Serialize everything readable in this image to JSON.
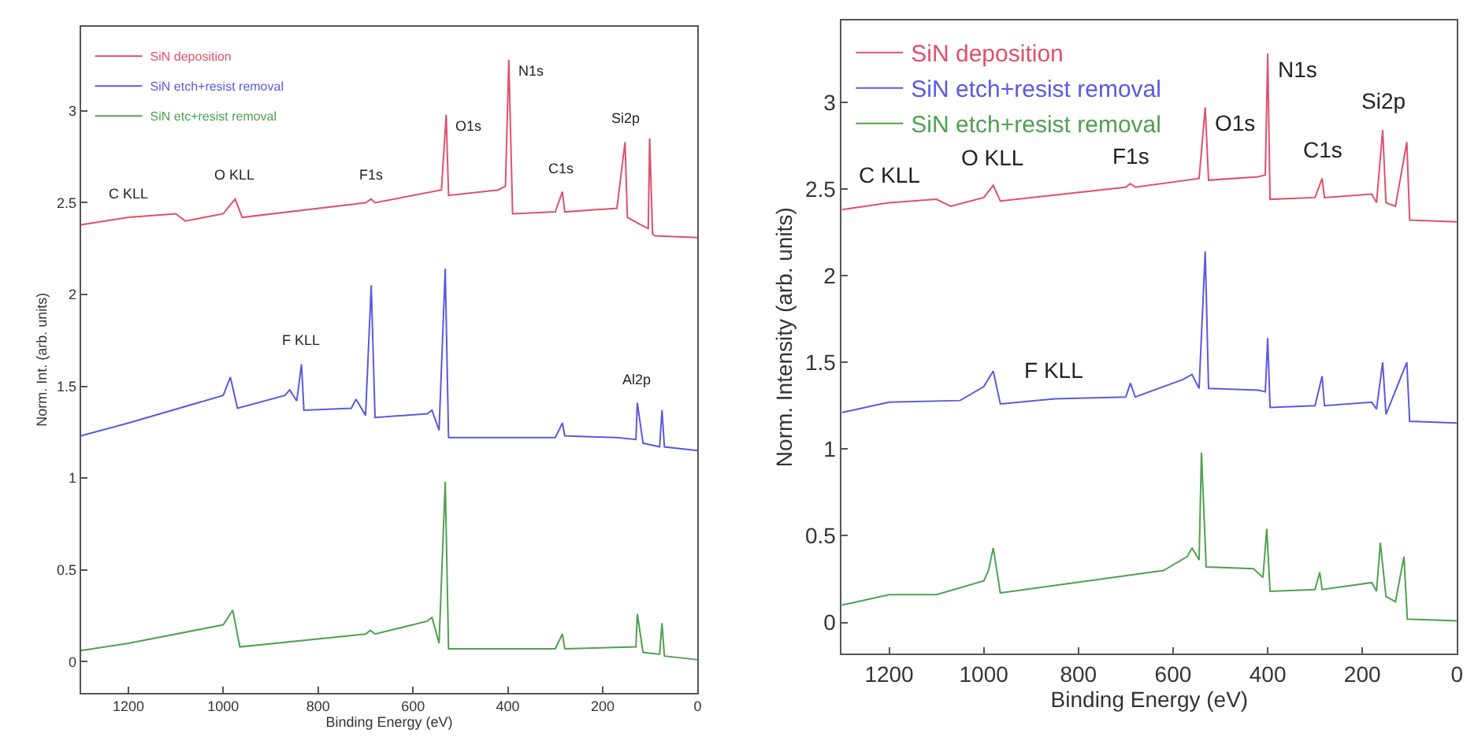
{
  "chart_data": [
    {
      "type": "line",
      "xlabel": "Binding Energy (eV)",
      "ylabel": "Norm. Int. (arb. units)",
      "xlim": [
        1300,
        0
      ],
      "ylim": [
        -0.17,
        3.46
      ],
      "xticks": [
        1200,
        1000,
        800,
        600,
        400,
        200,
        0
      ],
      "yticks": [
        0,
        0.5,
        1,
        1.5,
        2,
        2.5,
        3
      ],
      "legend": "top left",
      "series": [
        {
          "name": "SiN deposition",
          "color": "#e0506a",
          "x": [
            1300,
            1200,
            1100,
            1080,
            1000,
            975,
            960,
            700,
            688,
            680,
            540,
            530,
            525,
            420,
            405,
            398,
            390,
            300,
            285,
            280,
            170,
            153,
            148,
            120,
            104,
            101,
            95,
            90,
            0
          ],
          "values": [
            2.38,
            2.42,
            2.44,
            2.4,
            2.44,
            2.52,
            2.42,
            2.5,
            2.52,
            2.5,
            2.57,
            2.98,
            2.54,
            2.57,
            2.59,
            3.28,
            2.44,
            2.45,
            2.56,
            2.45,
            2.47,
            2.83,
            2.42,
            2.38,
            2.36,
            2.85,
            2.33,
            2.32,
            2.31
          ]
        },
        {
          "name": "SiN etch+resist removal",
          "color": "#5a5ae0",
          "x": [
            1300,
            1200,
            1000,
            985,
            970,
            870,
            860,
            845,
            835,
            830,
            730,
            720,
            700,
            688,
            680,
            570,
            560,
            545,
            532,
            525,
            300,
            285,
            280,
            170,
            130,
            127,
            115,
            80,
            75,
            70,
            0
          ],
          "values": [
            1.23,
            1.3,
            1.45,
            1.55,
            1.38,
            1.45,
            1.48,
            1.42,
            1.62,
            1.37,
            1.38,
            1.43,
            1.34,
            2.05,
            1.33,
            1.35,
            1.37,
            1.26,
            2.14,
            1.22,
            1.22,
            1.3,
            1.23,
            1.22,
            1.21,
            1.41,
            1.19,
            1.17,
            1.37,
            1.17,
            1.15
          ]
        },
        {
          "name": "SiN etc+resist removal",
          "color": "#50a050",
          "x": [
            1300,
            1200,
            1000,
            980,
            965,
            700,
            690,
            680,
            570,
            560,
            545,
            532,
            525,
            300,
            285,
            280,
            130,
            127,
            115,
            80,
            75,
            70,
            0
          ],
          "values": [
            0.06,
            0.1,
            0.2,
            0.28,
            0.08,
            0.15,
            0.17,
            0.15,
            0.22,
            0.24,
            0.1,
            0.98,
            0.07,
            0.07,
            0.15,
            0.07,
            0.08,
            0.26,
            0.05,
            0.04,
            0.21,
            0.03,
            0.01
          ]
        }
      ],
      "annotations": [
        {
          "text": "C KLL",
          "x": 1200,
          "y": 2.42
        },
        {
          "text": "O KLL",
          "x": 975,
          "y": 2.52
        },
        {
          "text": "F1s",
          "x": 688,
          "y": 2.52
        },
        {
          "text": "O1s",
          "x": 530,
          "y": 2.98
        },
        {
          "text": "N1s",
          "x": 398,
          "y": 3.28
        },
        {
          "text": "C1s",
          "x": 285,
          "y": 2.56
        },
        {
          "text": "Si2p",
          "x": 153,
          "y": 2.83
        },
        {
          "text": "F KLL",
          "x": 835,
          "y": 1.62
        },
        {
          "text": "Al2p",
          "x": 127,
          "y": 1.41
        }
      ]
    },
    {
      "type": "line",
      "xlabel": "Binding Energy (eV)",
      "ylabel": "Norm. Intensity (arb. units)",
      "xlim": [
        1300,
        0
      ],
      "ylim": [
        -0.18,
        3.47
      ],
      "xticks": [
        1200,
        1000,
        800,
        600,
        400,
        200,
        0
      ],
      "yticks": [
        0,
        0.5,
        1,
        1.5,
        2,
        2.5,
        3
      ],
      "legend": "top left",
      "series": [
        {
          "name": "SiN deposition",
          "color": "#e0506a",
          "x": [
            1300,
            1200,
            1100,
            1070,
            1000,
            980,
            965,
            700,
            690,
            680,
            545,
            532,
            525,
            420,
            405,
            400,
            395,
            300,
            285,
            280,
            180,
            170,
            157,
            150,
            130,
            106,
            100,
            0
          ],
          "values": [
            2.38,
            2.42,
            2.44,
            2.4,
            2.45,
            2.52,
            2.43,
            2.51,
            2.53,
            2.51,
            2.56,
            2.97,
            2.55,
            2.57,
            2.58,
            3.28,
            2.44,
            2.45,
            2.56,
            2.45,
            2.47,
            2.42,
            2.84,
            2.42,
            2.4,
            2.77,
            2.32,
            2.31
          ]
        },
        {
          "name": "SiN etch+resist removal",
          "color": "#5a5ae0",
          "x": [
            1300,
            1200,
            1050,
            1000,
            980,
            965,
            850,
            700,
            690,
            680,
            580,
            560,
            545,
            532,
            525,
            420,
            405,
            400,
            395,
            300,
            285,
            280,
            180,
            170,
            157,
            150,
            106,
            100,
            0
          ],
          "values": [
            1.21,
            1.27,
            1.28,
            1.36,
            1.45,
            1.26,
            1.29,
            1.3,
            1.38,
            1.3,
            1.4,
            1.43,
            1.35,
            2.14,
            1.35,
            1.34,
            1.33,
            1.64,
            1.24,
            1.25,
            1.42,
            1.25,
            1.27,
            1.23,
            1.5,
            1.2,
            1.5,
            1.16,
            1.15
          ]
        },
        {
          "name": "SiN etch+resist removal",
          "color": "#50a050",
          "x": [
            1300,
            1200,
            1100,
            1000,
            990,
            980,
            965,
            620,
            570,
            560,
            545,
            540,
            530,
            430,
            410,
            402,
            395,
            300,
            290,
            285,
            180,
            170,
            162,
            150,
            130,
            112,
            105,
            0
          ],
          "values": [
            0.1,
            0.16,
            0.16,
            0.24,
            0.3,
            0.43,
            0.17,
            0.3,
            0.38,
            0.43,
            0.36,
            0.98,
            0.32,
            0.31,
            0.26,
            0.54,
            0.18,
            0.19,
            0.29,
            0.19,
            0.23,
            0.18,
            0.46,
            0.15,
            0.12,
            0.38,
            0.02,
            0.01
          ]
        }
      ],
      "annotations": [
        {
          "text": "C KLL",
          "x": 1200,
          "y": 2.42
        },
        {
          "text": "O KLL",
          "x": 980,
          "y": 2.52
        },
        {
          "text": "F1s",
          "x": 690,
          "y": 2.53
        },
        {
          "text": "O1s",
          "x": 532,
          "y": 2.97
        },
        {
          "text": "N1s",
          "x": 400,
          "y": 3.28
        },
        {
          "text": "C1s",
          "x": 285,
          "y": 2.56
        },
        {
          "text": "Si2p",
          "x": 157,
          "y": 2.84
        },
        {
          "text": "F KLL",
          "x": 850,
          "y": 1.29
        }
      ]
    }
  ]
}
